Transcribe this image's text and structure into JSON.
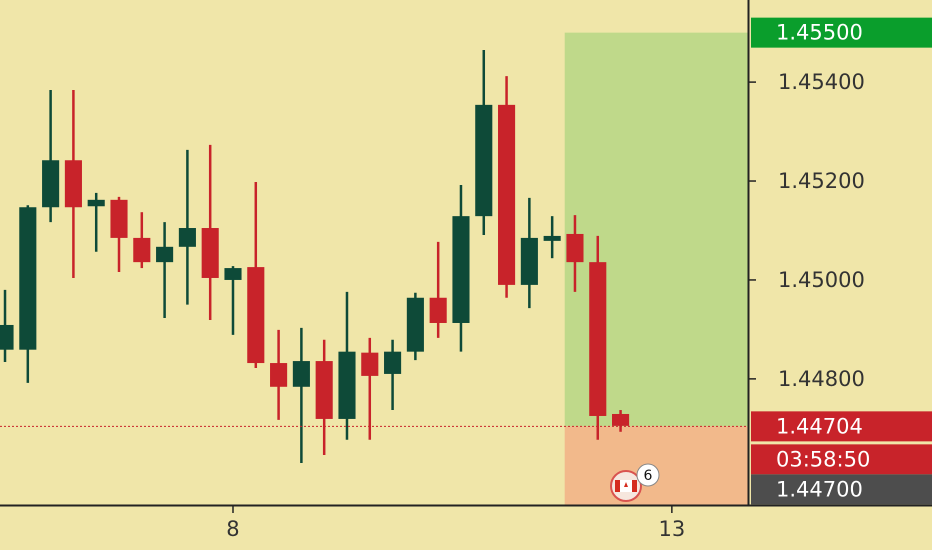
{
  "chart_data": {
    "type": "candlestick",
    "xlim": [
      -0.22,
      32.59
    ],
    "ylim": [
      1.44545,
      1.45566
    ],
    "yticks": [
      {
        "value": 1.448,
        "label": "1.44800"
      },
      {
        "value": 1.45,
        "label": "1.45000"
      },
      {
        "value": 1.452,
        "label": "1.45200"
      },
      {
        "value": 1.454,
        "label": "1.45400"
      }
    ],
    "xticks": [
      {
        "value": 10,
        "label": "8"
      },
      {
        "value": 29.25,
        "label": "13"
      }
    ],
    "up_color": "#0e4a38",
    "down_color": "#c8232a",
    "open": [
      1.44859,
      1.44859,
      1.45147,
      1.45242,
      1.45149,
      1.45162,
      1.45085,
      1.45036,
      1.45067,
      1.45105,
      1.45,
      1.45026,
      1.44832,
      1.44784,
      1.44836,
      1.44719,
      1.44853,
      1.4481,
      1.44855,
      1.44964,
      1.44913,
      1.45129,
      1.45354,
      1.4499,
      1.45079,
      1.45093,
      1.45036,
      1.44729
    ],
    "high": [
      1.4498,
      1.45151,
      1.45384,
      1.45384,
      1.45176,
      1.45168,
      1.45137,
      1.45117,
      1.45263,
      1.45273,
      1.45028,
      1.45198,
      1.44899,
      1.44903,
      1.44879,
      1.44976,
      1.44883,
      1.44879,
      1.44974,
      1.45077,
      1.45192,
      1.45465,
      1.45412,
      1.45166,
      1.45129,
      1.45131,
      1.45089,
      1.44737
    ],
    "low": [
      1.44834,
      1.44792,
      1.45117,
      1.45004,
      1.45057,
      1.45016,
      1.45024,
      1.44923,
      1.4495,
      1.44919,
      1.44889,
      1.44822,
      1.44717,
      1.4463,
      1.44646,
      1.44677,
      1.44677,
      1.44737,
      1.44838,
      1.44883,
      1.44855,
      1.45091,
      1.44964,
      1.44943,
      1.45044,
      1.44976,
      1.44677,
      1.44693
    ],
    "close": [
      1.44909,
      1.45147,
      1.45242,
      1.45147,
      1.45162,
      1.45085,
      1.45036,
      1.45067,
      1.45105,
      1.45004,
      1.45024,
      1.44832,
      1.44784,
      1.44836,
      1.44719,
      1.44855,
      1.44806,
      1.44855,
      1.44964,
      1.44913,
      1.45129,
      1.45354,
      1.4499,
      1.45085,
      1.45089,
      1.45036,
      1.44725,
      1.44705
    ],
    "position": {
      "target": {
        "value": 1.455,
        "label": "1.45500",
        "color": "#0a9e2c"
      },
      "entry": {
        "value": 1.44704,
        "label": "1.44704",
        "color": "#c8232a"
      },
      "stop": {
        "value": 1.447,
        "label": "1.44700",
        "color": "#4d4d4d"
      },
      "profit_color": "#bfd98a",
      "loss_color": "#f2b98b"
    },
    "countdown": "03:58:50",
    "event_badge": "6"
  }
}
